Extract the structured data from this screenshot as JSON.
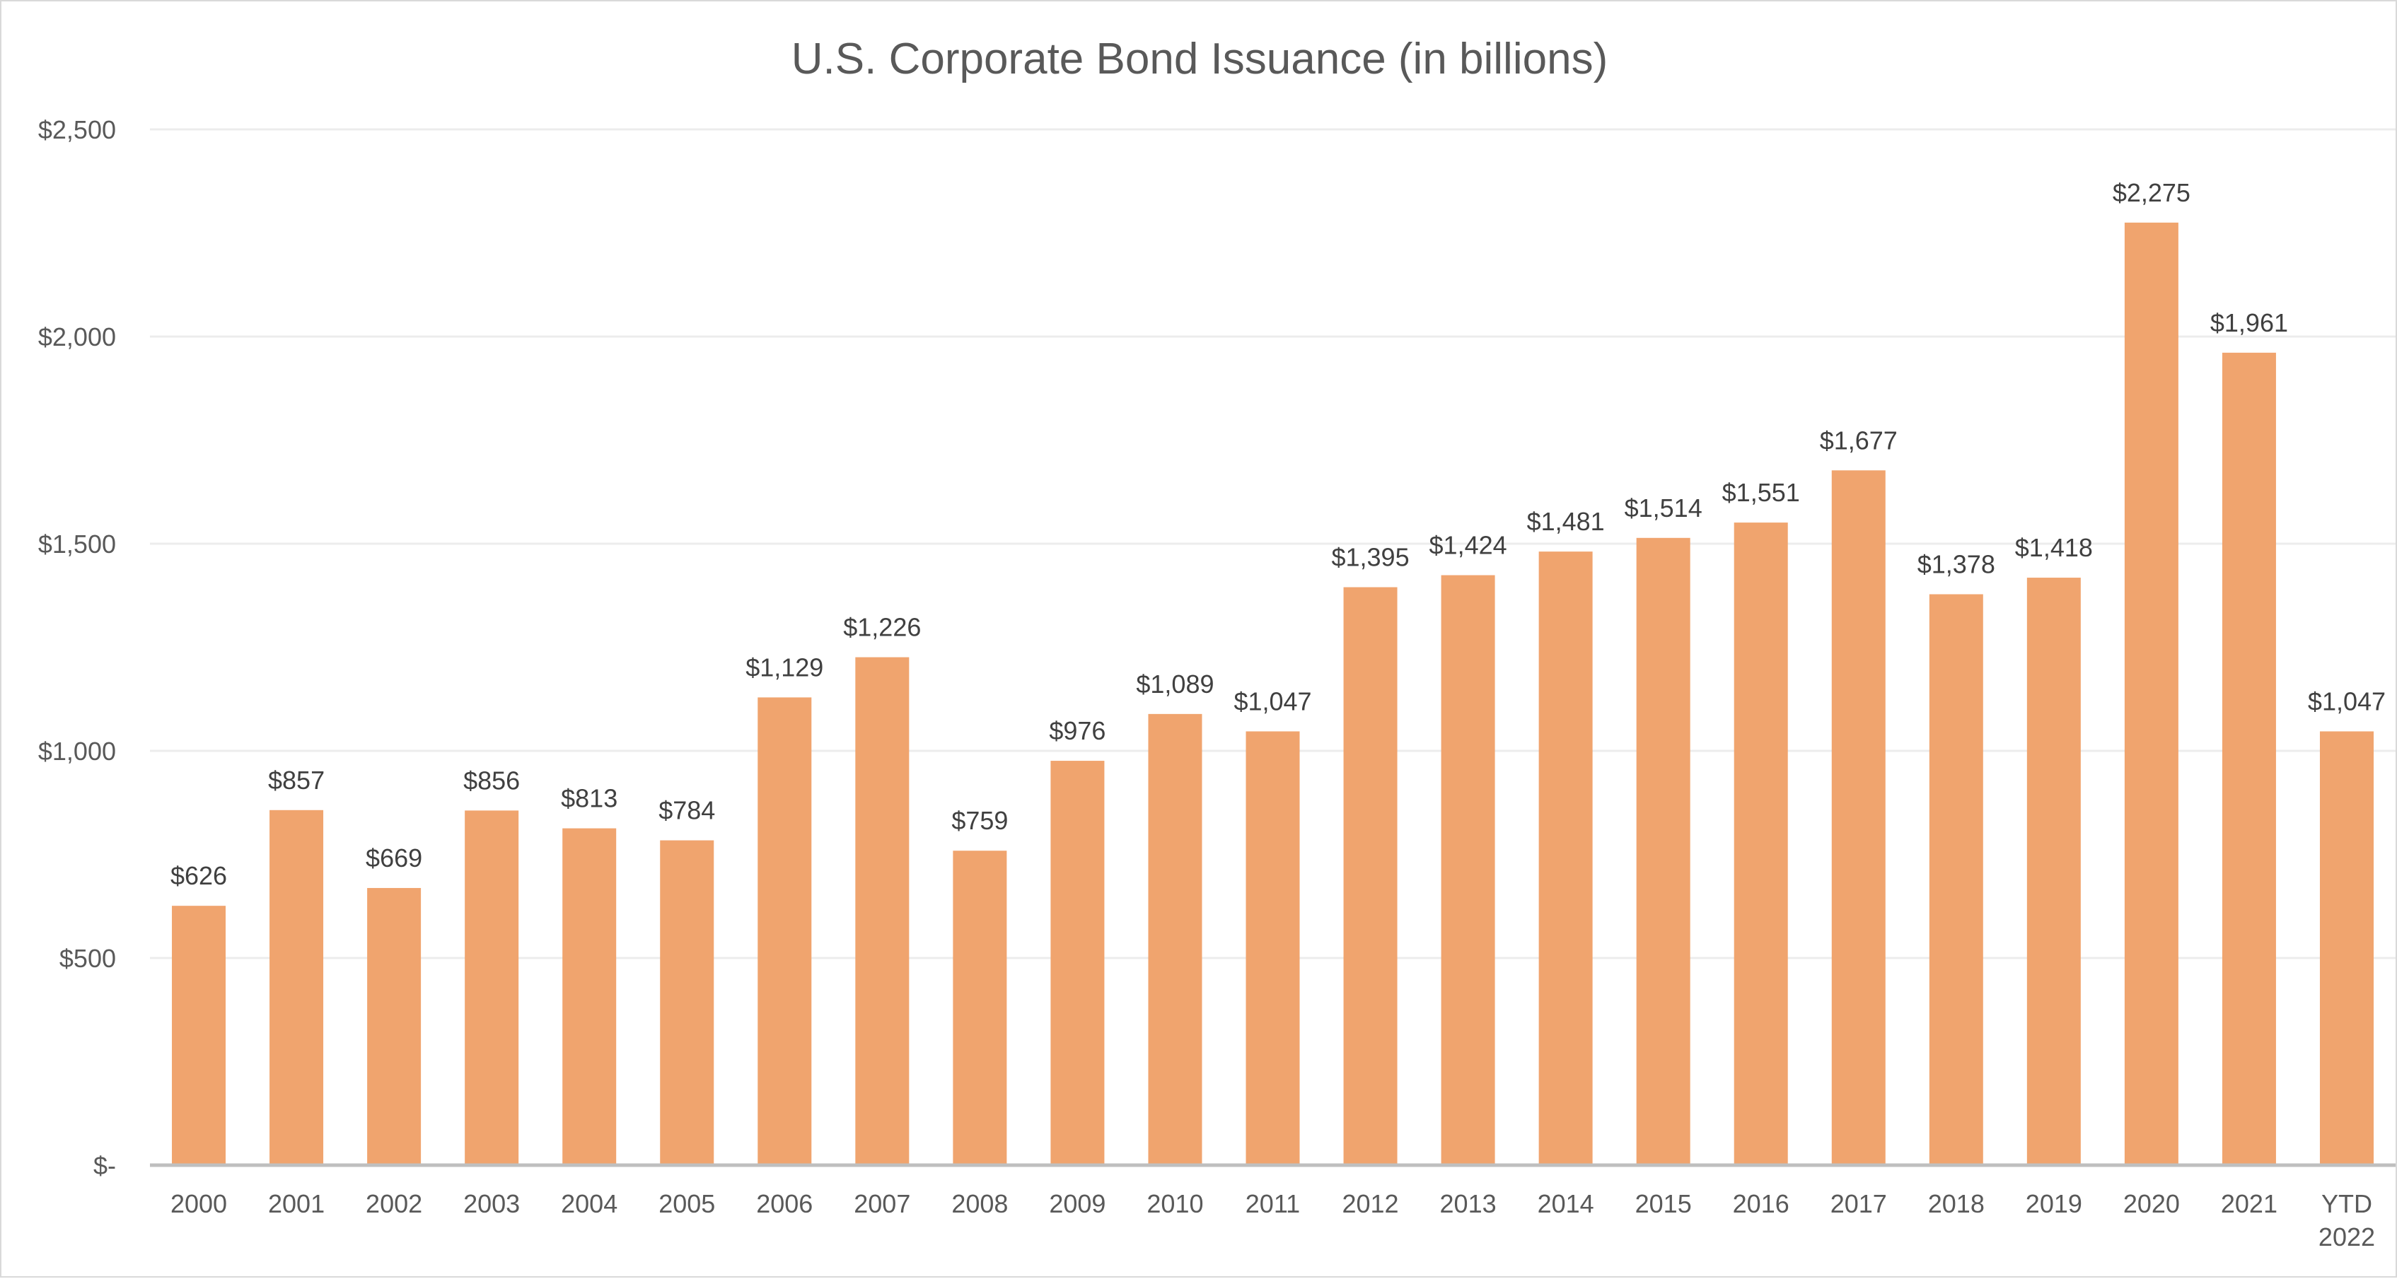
{
  "chart_data": {
    "type": "bar",
    "title": "U.S. Corporate Bond Issuance (in billions)",
    "xlabel": "",
    "ylabel": "",
    "ylim": [
      0,
      2500
    ],
    "grid": true,
    "legend": "none",
    "bar_color": "#F0A46E",
    "y_ticks": [
      {
        "value": 0,
        "label": "$-"
      },
      {
        "value": 500,
        "label": "$500"
      },
      {
        "value": 1000,
        "label": "$1,000"
      },
      {
        "value": 1500,
        "label": "$1,500"
      },
      {
        "value": 2000,
        "label": "$2,000"
      },
      {
        "value": 2500,
        "label": "$2,500"
      }
    ],
    "categories": [
      [
        "2000"
      ],
      [
        "2001"
      ],
      [
        "2002"
      ],
      [
        "2003"
      ],
      [
        "2004"
      ],
      [
        "2005"
      ],
      [
        "2006"
      ],
      [
        "2007"
      ],
      [
        "2008"
      ],
      [
        "2009"
      ],
      [
        "2010"
      ],
      [
        "2011"
      ],
      [
        "2012"
      ],
      [
        "2013"
      ],
      [
        "2014"
      ],
      [
        "2015"
      ],
      [
        "2016"
      ],
      [
        "2017"
      ],
      [
        "2018"
      ],
      [
        "2019"
      ],
      [
        "2020"
      ],
      [
        "2021"
      ],
      [
        "YTD",
        "2022"
      ]
    ],
    "values": [
      626,
      857,
      669,
      856,
      813,
      784,
      1129,
      1226,
      759,
      976,
      1089,
      1047,
      1395,
      1424,
      1481,
      1514,
      1551,
      1677,
      1378,
      1418,
      2275,
      1961,
      1047
    ],
    "data_labels": [
      "$626",
      "$857",
      "$669",
      "$856",
      "$813",
      "$784",
      "$1,129",
      "$1,226",
      "$759",
      "$976",
      "$1,089",
      "$1,047",
      "$1,395",
      "$1,424",
      "$1,481",
      "$1,514",
      "$1,551",
      "$1,677",
      "$1,378",
      "$1,418",
      "$2,275",
      "$1,961",
      "$1,047"
    ]
  }
}
